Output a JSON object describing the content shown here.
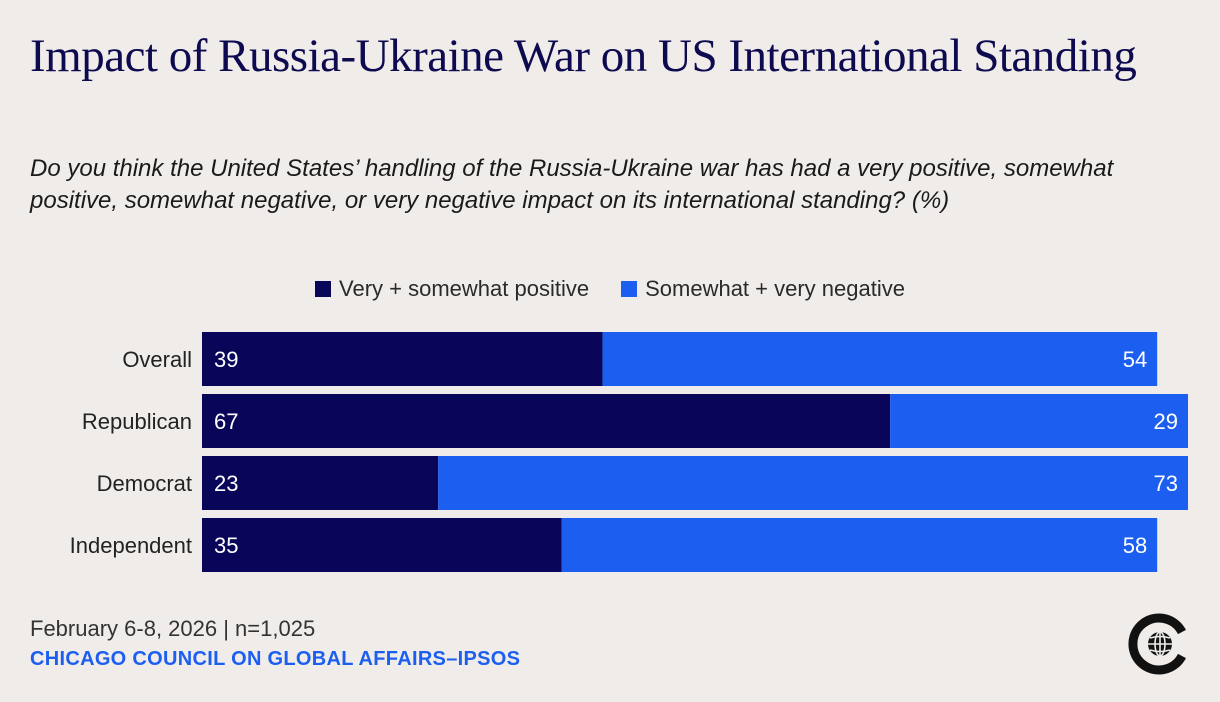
{
  "chart_data": {
    "type": "bar",
    "orientation": "horizontal",
    "stacked": true,
    "title": "Impact of Russia-Ukraine War on US International Standing",
    "subtitle": "Do you think the United States’ handling of the Russia-Ukraine war has had a very positive, somewhat positive, somewhat negative, or very negative impact on its international standing? (%)",
    "categories": [
      "Overall",
      "Republican",
      "Democrat",
      "Independent"
    ],
    "series": [
      {
        "name": "Very + somewhat positive",
        "color": "#09065a",
        "values": [
          39,
          67,
          23,
          35
        ]
      },
      {
        "name": "Somewhat + very negative",
        "color": "#1c5ff0",
        "values": [
          54,
          29,
          73,
          58
        ]
      }
    ],
    "xlim": [
      0,
      96
    ],
    "legend_position": "top-center",
    "grid": false
  },
  "footer": {
    "note": "February 6-8, 2026 | n=1,025",
    "source": "CHICAGO COUNCIL ON GLOBAL AFFAIRS–IPSOS"
  },
  "logo": {
    "icon": "globe-c-logo-icon"
  }
}
